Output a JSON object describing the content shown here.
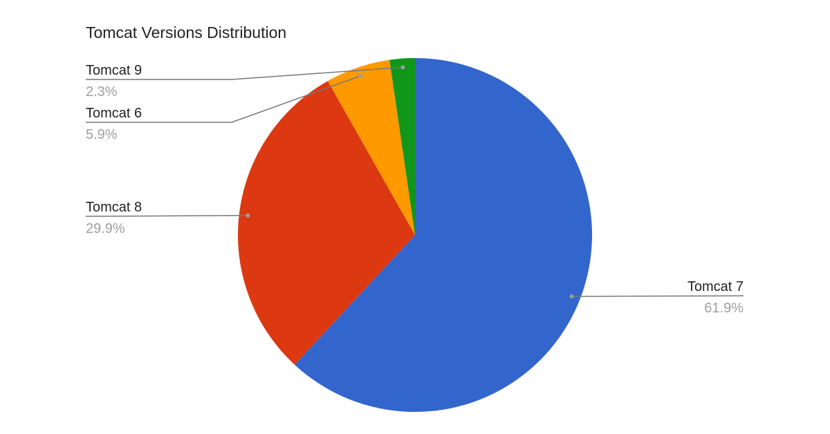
{
  "chart_data": {
    "type": "pie",
    "title": "Tomcat Versions Distribution",
    "categories": [
      "Tomcat 7",
      "Tomcat 8",
      "Tomcat 6",
      "Tomcat 9"
    ],
    "values": [
      61.9,
      29.9,
      5.9,
      2.3
    ],
    "value_labels": [
      "61.9%",
      "29.9%",
      "5.9%",
      "2.3%"
    ],
    "colors": [
      "#3366cc",
      "#dc3912",
      "#ff9900",
      "#109618"
    ]
  }
}
